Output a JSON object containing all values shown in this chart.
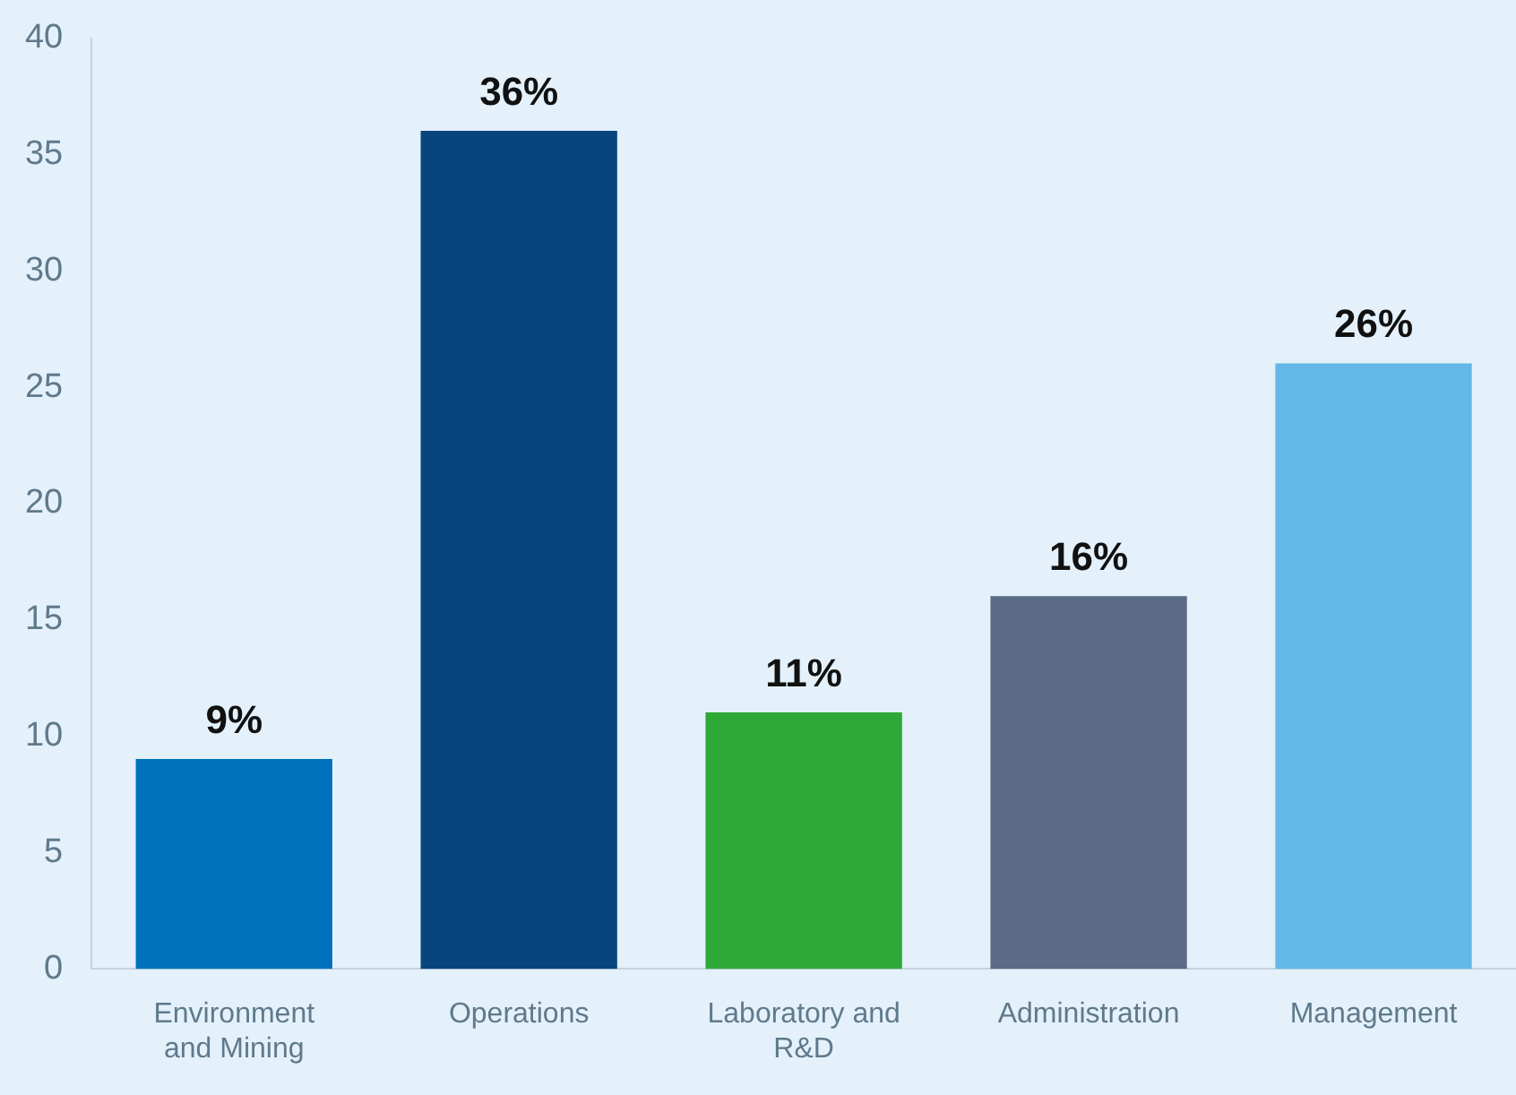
{
  "chart_data": {
    "type": "bar",
    "categories": [
      "Environment and Mining",
      "Operations",
      "Laboratory and R&D",
      "Administration",
      "Management"
    ],
    "values": [
      9,
      36,
      11,
      16,
      26
    ],
    "colors": [
      "#0071bc",
      "#08457e",
      "#2ea836",
      "#5b6b85",
      "#63b8e8"
    ],
    "value_labels": [
      "9%",
      "36%",
      "11%",
      "16%",
      "26%"
    ],
    "ylim": [
      0,
      40
    ],
    "yticks": [
      0,
      5,
      10,
      15,
      20,
      25,
      30,
      35,
      40
    ],
    "grid": false,
    "legend": false
  }
}
